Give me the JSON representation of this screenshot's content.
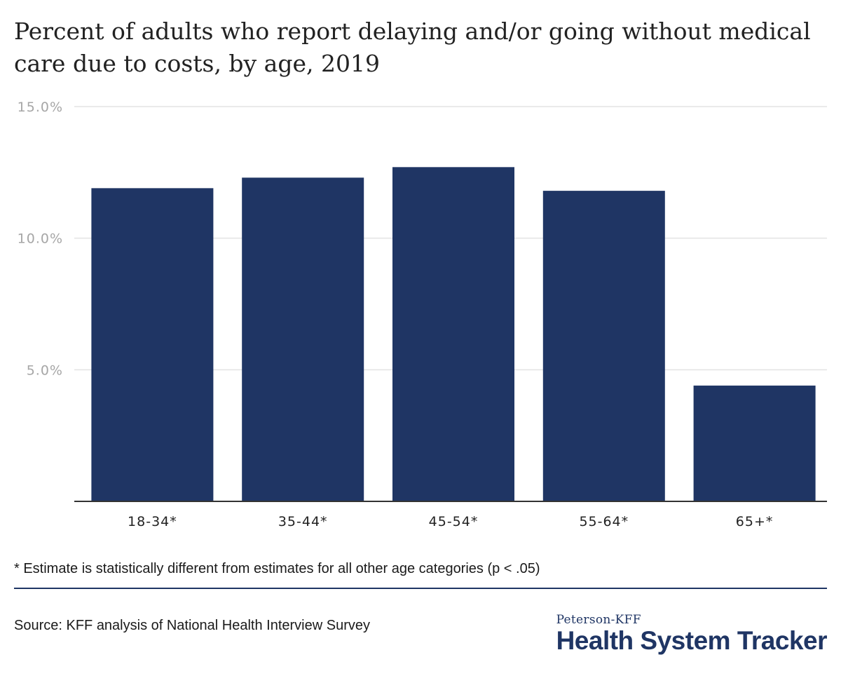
{
  "title": "Percent of adults who report delaying and/or going without medical care due to costs, by age, 2019",
  "footnote": "* Estimate is statistically different from estimates for all other age categories (p < .05)",
  "source": "Source: KFF analysis of National Health Interview Survey",
  "brand": {
    "small": "Peterson-KFF",
    "large": "Health System Tracker"
  },
  "colors": {
    "bar": "#1f3564",
    "grid": "#e3e3e3",
    "axis": "#333333"
  },
  "chart_data": {
    "type": "bar",
    "categories": [
      "18-34*",
      "35-44*",
      "45-54*",
      "55-64*",
      "65+*"
    ],
    "values": [
      11.9,
      12.3,
      12.7,
      11.8,
      4.4
    ],
    "ylim": [
      0,
      15
    ],
    "yticks": [
      5,
      10,
      15
    ],
    "ytick_labels": [
      "5.0%",
      "10.0%",
      "15.0%"
    ],
    "grid": true,
    "legend": false
  }
}
